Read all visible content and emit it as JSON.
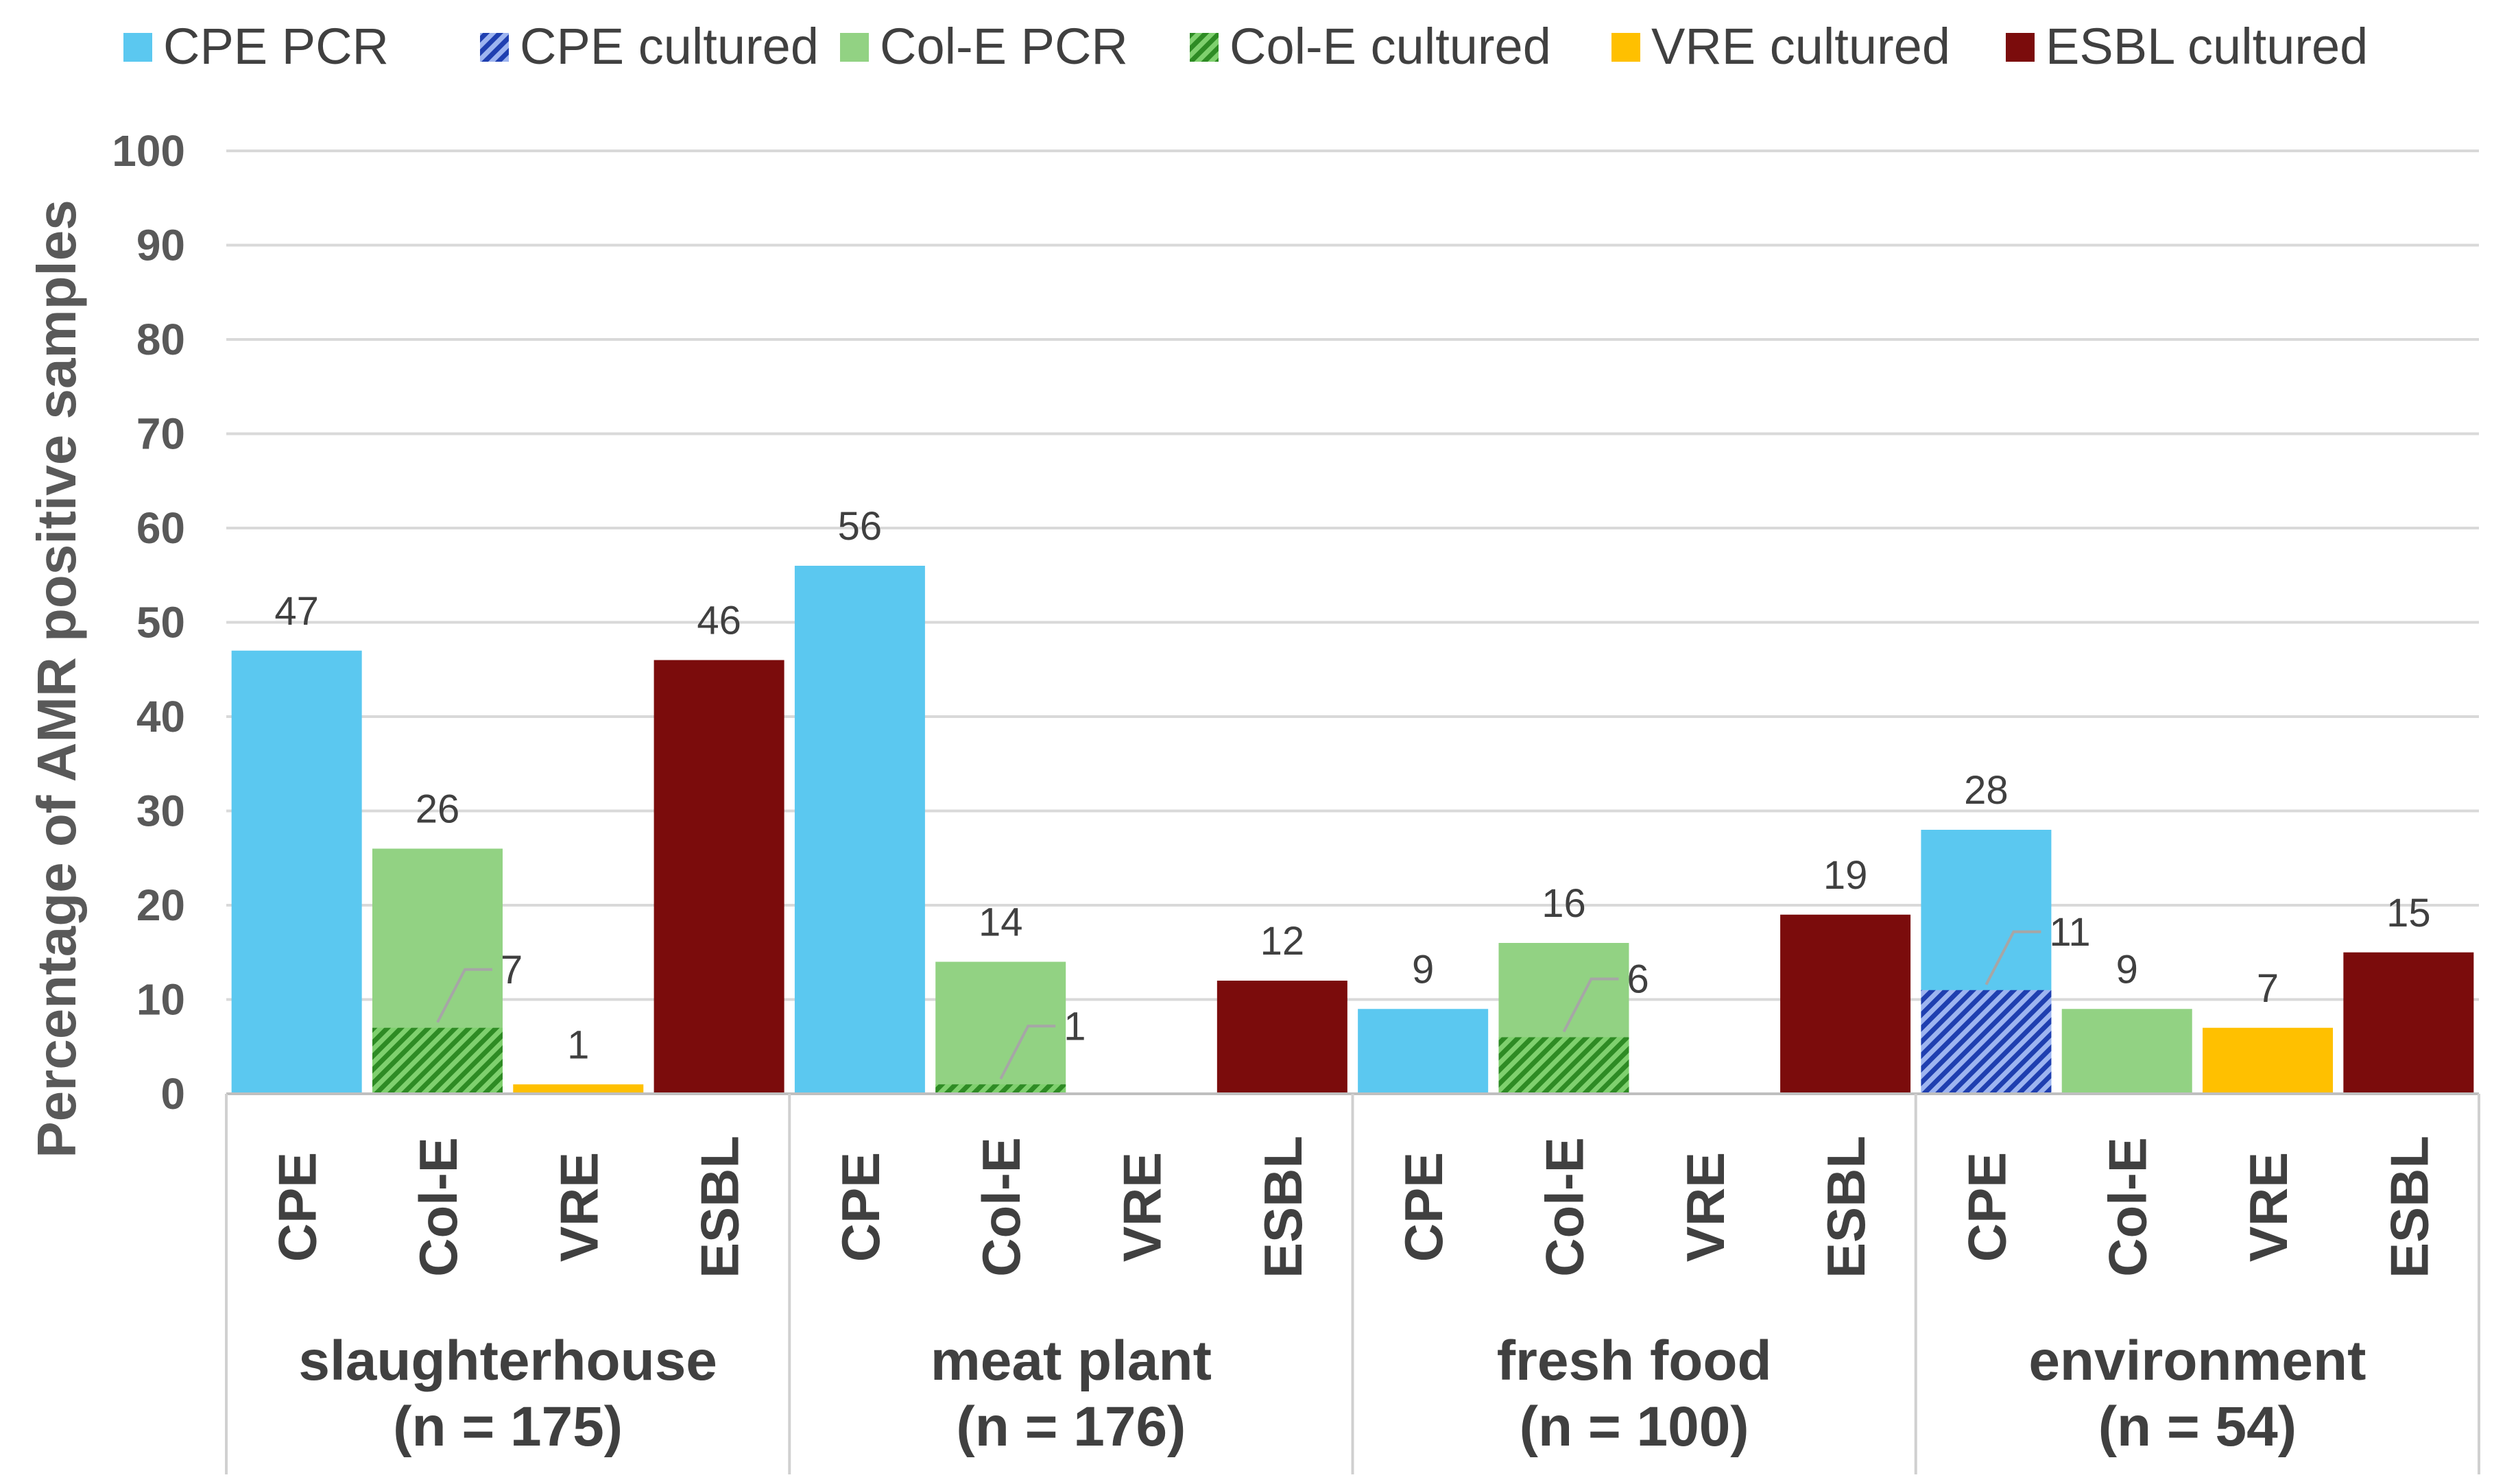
{
  "chart_data": {
    "type": "bar",
    "title": "",
    "ylabel": "Percentage of  AMR positive samples",
    "xlabel": "",
    "ylim": [
      0,
      100
    ],
    "yticks": [
      0,
      10,
      20,
      30,
      40,
      50,
      60,
      70,
      80,
      90,
      100
    ],
    "grid": true,
    "legend_position": "top",
    "legend": [
      {
        "key": "cpe_pcr",
        "label": "CPE PCR",
        "color": "#5BC8F0",
        "pattern": "solid"
      },
      {
        "key": "cpe_cult",
        "label": "CPE cultured",
        "color": "#1F3FB0",
        "pattern": "hatch"
      },
      {
        "key": "cole_pcr",
        "label": "Col-E PCR",
        "color": "#92D283",
        "pattern": "solid"
      },
      {
        "key": "cole_cult",
        "label": "Col-E cultured",
        "color": "#2E8B24",
        "pattern": "hatch"
      },
      {
        "key": "vre_cult",
        "label": "VRE cultured",
        "color": "#FFC000",
        "pattern": "solid"
      },
      {
        "key": "esbl_cult",
        "label": "ESBL cultured",
        "color": "#7B0C0C",
        "pattern": "solid"
      }
    ],
    "groups": [
      {
        "name": "slaughterhouse",
        "n": "(n = 175)",
        "bars": [
          {
            "category": "CPE",
            "total": 47,
            "total_label": "47",
            "fill": "cpe_pcr"
          },
          {
            "category": "Col-E",
            "total": 26,
            "total_label": "26",
            "fill": "cole_pcr",
            "cultured": 7,
            "cultured_label": "7",
            "cultured_fill": "cole_cult"
          },
          {
            "category": "VRE",
            "total": 1,
            "total_label": "1",
            "fill": "vre_cult"
          },
          {
            "category": "ESBL",
            "total": 46,
            "total_label": "46",
            "fill": "esbl_cult"
          }
        ]
      },
      {
        "name": "meat plant",
        "n": "(n = 176)",
        "bars": [
          {
            "category": "CPE",
            "total": 56,
            "total_label": "56",
            "fill": "cpe_pcr"
          },
          {
            "category": "Col-E",
            "total": 14,
            "total_label": "14",
            "fill": "cole_pcr",
            "cultured": 1,
            "cultured_label": "1",
            "cultured_fill": "cole_cult"
          },
          {
            "category": "VRE",
            "total": 0,
            "fill": "vre_cult"
          },
          {
            "category": "ESBL",
            "total": 12,
            "total_label": "12",
            "fill": "esbl_cult"
          }
        ]
      },
      {
        "name": "fresh food",
        "n": "(n = 100)",
        "bars": [
          {
            "category": "CPE",
            "total": 9,
            "total_label": "9",
            "fill": "cpe_pcr"
          },
          {
            "category": "Col-E",
            "total": 16,
            "total_label": "16",
            "fill": "cole_pcr",
            "cultured": 6,
            "cultured_label": "6",
            "cultured_fill": "cole_cult"
          },
          {
            "category": "VRE",
            "total": 0,
            "fill": "vre_cult"
          },
          {
            "category": "ESBL",
            "total": 19,
            "total_label": "19",
            "fill": "esbl_cult"
          }
        ]
      },
      {
        "name": "environment",
        "n": "(n = 54)",
        "bars": [
          {
            "category": "CPE",
            "total": 28,
            "total_label": "28",
            "fill": "cpe_pcr",
            "cultured": 11,
            "cultured_label": "11",
            "cultured_fill": "cpe_cult"
          },
          {
            "category": "Col-E",
            "total": 9,
            "total_label": "9",
            "fill": "cole_pcr"
          },
          {
            "category": "VRE",
            "total": 7,
            "total_label": "7",
            "fill": "vre_cult"
          },
          {
            "category": "ESBL",
            "total": 15,
            "total_label": "15",
            "fill": "esbl_cult"
          }
        ]
      }
    ]
  }
}
